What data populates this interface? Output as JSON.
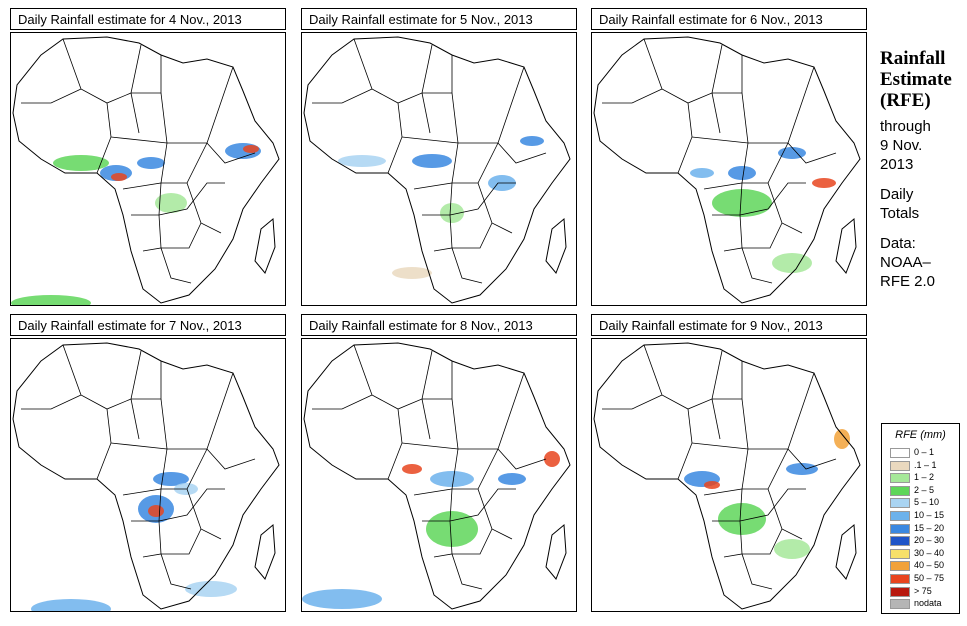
{
  "panels": [
    {
      "title": "Daily Rainfall estimate for  4 Nov., 2013"
    },
    {
      "title": "Daily Rainfall estimate for  5 Nov., 2013"
    },
    {
      "title": "Daily Rainfall estimate for  6 Nov., 2013"
    },
    {
      "title": "Daily Rainfall estimate for  7 Nov., 2013"
    },
    {
      "title": "Daily Rainfall estimate for  8 Nov., 2013"
    },
    {
      "title": "Daily Rainfall estimate for  9 Nov., 2013"
    }
  ],
  "side": {
    "title1": "Rainfall",
    "title2": "Estimate",
    "title3": "(RFE)",
    "through": "through",
    "date1": "9 Nov.",
    "date2": "2013",
    "daily1": "Daily",
    "daily2": "Totals",
    "data_label": "Data:",
    "source1": "NOAA–",
    "source2": "RFE 2.0"
  },
  "legend": {
    "title": "RFE (mm)",
    "items": [
      {
        "label": "0 – 1",
        "color": "#ffffff"
      },
      {
        "label": ".1 – 1",
        "color": "#ead9bf"
      },
      {
        "label": "1 – 2",
        "color": "#a6e89a"
      },
      {
        "label": "2 – 5",
        "color": "#5fd65a"
      },
      {
        "label": "5 – 10",
        "color": "#a9d4f2"
      },
      {
        "label": "10 – 15",
        "color": "#6cb2ec"
      },
      {
        "label": "15 – 20",
        "color": "#3a88e0"
      },
      {
        "label": "20 – 30",
        "color": "#1f55c8"
      },
      {
        "label": "30 – 40",
        "color": "#f7e06a"
      },
      {
        "label": "40 – 50",
        "color": "#f2a23a"
      },
      {
        "label": "50 – 75",
        "color": "#e8451f"
      },
      {
        "label": "> 75",
        "color": "#b81a10"
      },
      {
        "label": "nodata",
        "color": "#b5b5b5"
      }
    ]
  }
}
